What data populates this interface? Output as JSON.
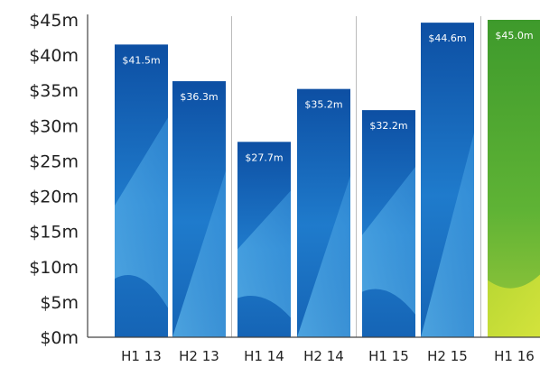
{
  "chart_data": {
    "type": "bar",
    "title": "",
    "xlabel": "",
    "ylabel": "",
    "categories": [
      "H1 13",
      "H2 13",
      "H1 14",
      "H2 14",
      "H1 15",
      "H2 15",
      "H1 16"
    ],
    "values": [
      41.5,
      36.3,
      27.7,
      35.2,
      32.2,
      44.6,
      45.0
    ],
    "value_labels": [
      "$41.5m",
      "$36.3m",
      "$27.7m",
      "$35.2m",
      "$32.2m",
      "$44.6m",
      "$45.0m"
    ],
    "ylim": [
      0,
      45
    ],
    "yticks": [
      0,
      5,
      10,
      15,
      20,
      25,
      30,
      35,
      40,
      45
    ],
    "ytick_labels": [
      "$0m",
      "$5m",
      "$10m",
      "$15m",
      "$20m",
      "$25m",
      "$30m",
      "$35m",
      "$40m",
      "$45m"
    ],
    "grid": false,
    "group_separators": true,
    "colors": {
      "bar_dark": "#0d4fa3",
      "bar_mid": "#1f7bcc",
      "bar_light": "#56aee6",
      "highlight_dark": "#3e9a2c",
      "highlight_light": "#b8d733",
      "axis": "#444444",
      "separator": "#bbbbbb",
      "label_text": "#ffffff"
    }
  }
}
